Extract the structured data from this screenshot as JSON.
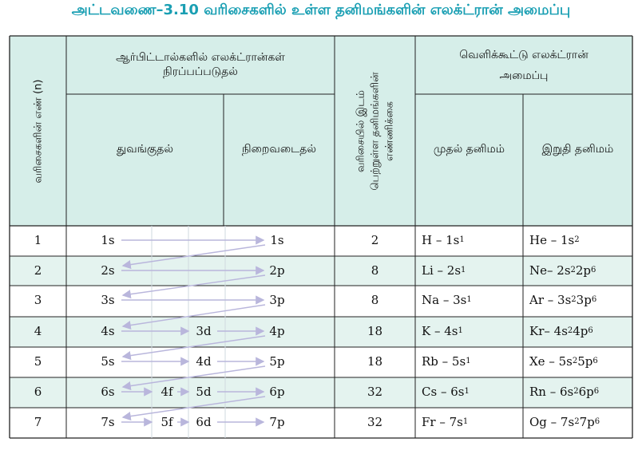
{
  "title": "அட்டவணை–3.10 வரிசைகளில் உள்ள தனிமங்களின் எலக்ட்ரான் அமைப்பு",
  "headers": {
    "period_number": "வரிசைகளின் எண் (n)",
    "orbital_filling": "ஆர்பிட்டால்களில் எலக்ட்ரான்கள் நிரப்பப்படுதல்",
    "start": "துவங்குதல்",
    "complete": "நிறைவடைதல்",
    "element_count_line1": "வரிசையில் இடம்",
    "element_count_line2": "பெற்றுள்ள தனிமங்களின்",
    "element_count_line3": "எண்ணிக்கை",
    "valence_config_line1": "வெளிக்கூட்டு எலக்ட்ரான்",
    "valence_config_line2": "அமைப்பு",
    "first_element": "முதல் தனிமம்",
    "last_element": "இறுதி தனிமம்"
  },
  "rows": [
    {
      "n": "1",
      "start": "1s",
      "mid1": "",
      "mid2": "",
      "end": "1s",
      "count": "2",
      "first": {
        "sym": "H – 1s",
        "sup": "1"
      },
      "last": [
        {
          "t": "He – 1s",
          "s": "2"
        }
      ]
    },
    {
      "n": "2",
      "start": "2s",
      "mid1": "",
      "mid2": "",
      "end": "2p",
      "count": "8",
      "first": {
        "sym": "Li – 2s",
        "sup": "1"
      },
      "last": [
        {
          "t": "Ne– 2s",
          "s": "2"
        },
        {
          "t": "2p",
          "s": "6"
        }
      ]
    },
    {
      "n": "3",
      "start": "3s",
      "mid1": "",
      "mid2": "",
      "end": "3p",
      "count": "8",
      "first": {
        "sym": "Na – 3s",
        "sup": "1"
      },
      "last": [
        {
          "t": "Ar – 3s",
          "s": "2"
        },
        {
          "t": "3p",
          "s": "6"
        }
      ]
    },
    {
      "n": "4",
      "start": "4s",
      "mid1": "",
      "mid2": "3d",
      "end": "4p",
      "count": "18",
      "first": {
        "sym": "K – 4s",
        "sup": "1"
      },
      "last": [
        {
          "t": "Kr– 4s",
          "s": "2"
        },
        {
          "t": "4p",
          "s": "6"
        }
      ]
    },
    {
      "n": "5",
      "start": "5s",
      "mid1": "",
      "mid2": "4d",
      "end": "5p",
      "count": "18",
      "first": {
        "sym": "Rb – 5s",
        "sup": "1"
      },
      "last": [
        {
          "t": "Xe – 5s",
          "s": "2"
        },
        {
          "t": "5p",
          "s": "6"
        }
      ]
    },
    {
      "n": "6",
      "start": "6s",
      "mid1": "4f",
      "mid2": "5d",
      "end": "6p",
      "count": "32",
      "first": {
        "sym": "Cs – 6s",
        "sup": "1"
      },
      "last": [
        {
          "t": "Rn – 6s",
          "s": "2"
        },
        {
          "t": "6p",
          "s": "6"
        }
      ]
    },
    {
      "n": "7",
      "start": "7s",
      "mid1": "5f",
      "mid2": "6d",
      "end": "7p",
      "count": "32",
      "first": {
        "sym": "Fr – 7s",
        "sup": "1"
      },
      "last": [
        {
          "t": "Og – 7s",
          "s": "2"
        },
        {
          "t": "7p",
          "s": "6"
        }
      ]
    }
  ],
  "colors": {
    "title": "#1a9fb3",
    "header_bg": "#d6eee9",
    "row_bg": "#e4f3ef",
    "arrow": "#b9b6dc",
    "border": "#222222"
  }
}
